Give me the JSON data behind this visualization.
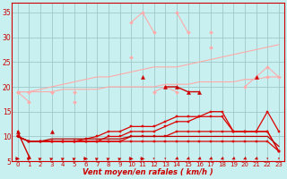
{
  "background_color": "#c8f0f0",
  "grid_color": "#a0c8c8",
  "x_label": "Vent moyen/en rafales ( km/h )",
  "x_ticks": [
    0,
    1,
    2,
    3,
    4,
    5,
    6,
    7,
    8,
    9,
    10,
    11,
    12,
    13,
    14,
    15,
    16,
    17,
    18,
    19,
    20,
    21,
    22,
    23
  ],
  "ylim": [
    5,
    37
  ],
  "yticks": [
    5,
    10,
    15,
    20,
    25,
    30,
    35
  ],
  "series": [
    {
      "color": "#ffaaaa",
      "marker": "D",
      "markersize": 2.0,
      "linewidth": 0.8,
      "y": [
        19,
        17,
        null,
        19,
        null,
        19,
        null,
        null,
        null,
        null,
        26,
        null,
        null,
        null,
        null,
        null,
        null,
        28,
        null,
        null,
        null,
        null,
        22,
        null
      ]
    },
    {
      "color": "#ffaaaa",
      "marker": "D",
      "markersize": 2.0,
      "linewidth": 0.8,
      "y": [
        null,
        null,
        null,
        null,
        null,
        null,
        null,
        null,
        null,
        null,
        33,
        35,
        31,
        null,
        35,
        31,
        null,
        31,
        null,
        null,
        null,
        null,
        null,
        null
      ]
    },
    {
      "color": "#ffaaaa",
      "marker": null,
      "markersize": 0,
      "linewidth": 0.8,
      "y": [
        19,
        19,
        19.5,
        20,
        20.5,
        21,
        21.5,
        22,
        22,
        22.5,
        23,
        23.5,
        24,
        24,
        24,
        24.5,
        25,
        25.5,
        26,
        26.5,
        27,
        27.5,
        28,
        28.5
      ]
    },
    {
      "color": "#ffaaaa",
      "marker": null,
      "markersize": 0,
      "linewidth": 0.8,
      "y": [
        19,
        19,
        19,
        19,
        19.5,
        19.5,
        19.5,
        19.5,
        20,
        20,
        20,
        20,
        20,
        20.5,
        20.5,
        20.5,
        21,
        21,
        21,
        21,
        21.5,
        21.5,
        22,
        22
      ]
    },
    {
      "color": "#ffaaaa",
      "marker": "D",
      "markersize": 2.0,
      "linewidth": 0.8,
      "y": [
        19,
        19,
        null,
        19,
        null,
        17,
        null,
        null,
        null,
        null,
        null,
        null,
        19,
        20,
        19,
        null,
        null,
        null,
        null,
        null,
        20,
        22,
        24,
        22
      ]
    },
    {
      "color": "#cc0000",
      "marker": "^",
      "markersize": 3,
      "linewidth": 1.0,
      "y": [
        11,
        6,
        null,
        11,
        null,
        null,
        null,
        null,
        null,
        null,
        null,
        22,
        null,
        20,
        20,
        19,
        19,
        null,
        null,
        null,
        null,
        22,
        null,
        null
      ]
    },
    {
      "color": "#dd0000",
      "marker": "s",
      "markersize": 1.8,
      "linewidth": 0.9,
      "y": [
        10,
        9,
        9,
        9,
        9,
        9,
        9.5,
        10,
        11,
        11,
        12,
        12,
        12,
        13,
        14,
        14,
        14,
        15,
        15,
        11,
        11,
        11,
        15,
        11
      ]
    },
    {
      "color": "#dd0000",
      "marker": "s",
      "markersize": 1.8,
      "linewidth": 0.9,
      "y": [
        10,
        9,
        9,
        9,
        9,
        9,
        9,
        9,
        10,
        10,
        11,
        11,
        11,
        12,
        13,
        13,
        14,
        14,
        14,
        11,
        11,
        11,
        11,
        7
      ]
    },
    {
      "color": "#dd0000",
      "marker": "s",
      "markersize": 1.8,
      "linewidth": 0.9,
      "y": [
        10,
        9,
        9,
        9,
        9,
        9,
        9,
        9,
        9,
        9,
        10,
        10,
        10,
        10,
        11,
        11,
        11,
        11,
        11,
        11,
        11,
        11,
        11,
        7
      ]
    },
    {
      "color": "#dd0000",
      "marker": "s",
      "markersize": 1.8,
      "linewidth": 0.9,
      "y": [
        10,
        9,
        9,
        9,
        9,
        9,
        9,
        9,
        9,
        9,
        9,
        9,
        9,
        9,
        9,
        9,
        9,
        9,
        9,
        9,
        9,
        9,
        9,
        7
      ]
    },
    {
      "color": "#bb0000",
      "marker": null,
      "markersize": 0,
      "linewidth": 0.9,
      "y": [
        10,
        9,
        9,
        9.5,
        9.5,
        9.5,
        9.5,
        9.5,
        9.5,
        9.5,
        10,
        10,
        10,
        10,
        10,
        10,
        10,
        10,
        10,
        10,
        10,
        10,
        10,
        8
      ]
    }
  ],
  "wind_arrows": {
    "x": [
      0,
      1,
      2,
      3,
      4,
      5,
      6,
      7,
      8,
      9,
      10,
      11,
      12,
      13,
      14,
      15,
      16,
      17,
      18,
      19,
      20,
      21,
      22,
      23
    ],
    "dx": [
      1,
      1,
      1,
      1,
      1,
      1,
      1,
      1,
      1,
      1,
      1,
      1,
      0,
      0,
      -1,
      -1,
      -1,
      -1,
      -1,
      -1,
      -1,
      -1,
      0,
      0
    ],
    "dy": [
      0,
      1,
      1,
      1,
      1,
      1,
      0,
      1,
      1,
      1,
      0,
      0,
      -1,
      -1,
      -1,
      -1,
      -1,
      -1,
      -1,
      -1,
      -1,
      -1,
      -1,
      -1
    ]
  }
}
